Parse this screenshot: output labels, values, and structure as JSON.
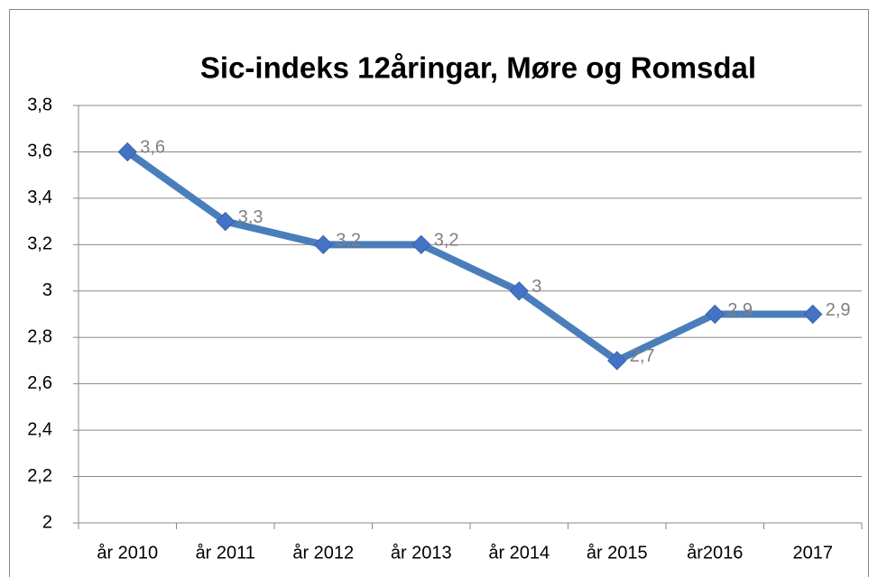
{
  "chart_data": {
    "type": "line",
    "title": "Sic-indeks 12åringar, Møre og Romsdal",
    "categories": [
      "år 2010",
      "år 2011",
      "år 2012",
      "år 2013",
      "år 2014",
      "år 2015",
      "år2016",
      "2017"
    ],
    "values": [
      3.6,
      3.3,
      3.2,
      3.2,
      3,
      2.7,
      2.9,
      2.9
    ],
    "value_labels": [
      "3,6",
      "3,3",
      "3,2",
      "3,2",
      "3",
      "2,7",
      "2,9",
      "2,9"
    ],
    "color": "#4a7ebb",
    "ylim": [
      2,
      3.8
    ],
    "yticks": [
      2,
      {
        "value": 2.2,
        "label": "2,2"
      },
      {
        "value": 2.4,
        "label": "2,4"
      },
      {
        "value": 2.6,
        "label": "2,6"
      },
      {
        "value": 2.8,
        "label": "2,8"
      },
      3,
      {
        "value": 3.2,
        "label": "3,2"
      },
      {
        "value": 3.4,
        "label": "3,4"
      },
      {
        "value": 3.6,
        "label": "3,6"
      },
      {
        "value": 3.8,
        "label": "3,8"
      }
    ],
    "grid": true
  }
}
